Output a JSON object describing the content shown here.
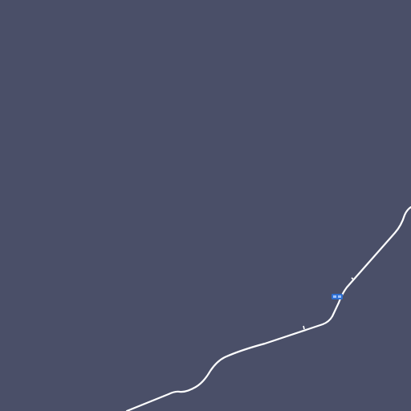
{
  "map": {
    "background_color": "#4a4f68",
    "road_color": "#ffffff",
    "road_casing_color": "#ffffff",
    "route_shield": {
      "text": "",
      "color": "#2f6fd0",
      "icon": "route-shield-icon"
    },
    "features": [
      {
        "type": "road",
        "name": ""
      }
    ]
  }
}
